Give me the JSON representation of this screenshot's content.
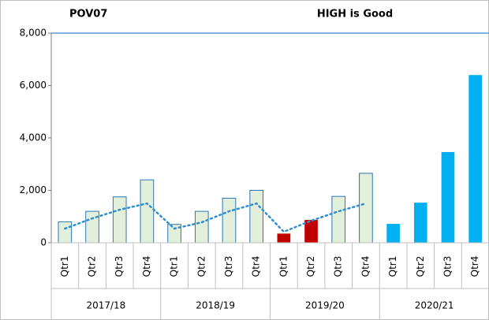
{
  "chart_data": {
    "type": "bar",
    "title": "POV07",
    "subtitle": "HIGH is Good",
    "categories": [
      "Qtr1",
      "Qtr2",
      "Qtr3",
      "Qtr4",
      "Qtr1",
      "Qtr2",
      "Qtr3",
      "Qtr4",
      "Qtr1",
      "Qtr2",
      "Qtr3",
      "Qtr4",
      "Qtr1",
      "Qtr2",
      "Qtr3",
      "Qtr4"
    ],
    "category_groups": [
      "2017/18",
      "2018/19",
      "2019/20",
      "2020/21"
    ],
    "series": [
      {
        "values": [
          800,
          1200,
          1750,
          2400,
          700,
          1200,
          1700,
          2000,
          350,
          870,
          1770,
          2650,
          720,
          1530,
          3460,
          6400
        ],
        "colors": [
          "#e2efda",
          "#e2efda",
          "#e2efda",
          "#e2efda",
          "#e2efda",
          "#e2efda",
          "#e2efda",
          "#e2efda",
          "#c00000",
          "#c00000",
          "#e2efda",
          "#e2efda",
          "#00b0f0",
          "#00b0f0",
          "#00b0f0",
          "#00b0f0"
        ],
        "outline": "#2e75b6"
      },
      {
        "type": "line",
        "color": "#2e8fd0",
        "dashed": true,
        "values": [
          540,
          930,
          1260,
          1500,
          540,
          780,
          1200,
          1500,
          420,
          840,
          1200,
          1500,
          null,
          null,
          null,
          null
        ]
      }
    ],
    "ylim": [
      0,
      8000
    ],
    "yticks": [
      0,
      {
        "value": 2000,
        "label": "2,000"
      },
      {
        "value": 4000,
        "label": "4,000"
      },
      {
        "value": 6000,
        "label": "6,000"
      },
      {
        "value": 8000,
        "label": "8,000"
      }
    ],
    "grid": false
  }
}
